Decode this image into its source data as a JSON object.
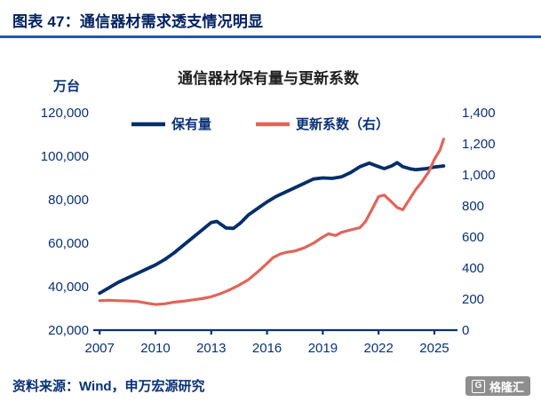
{
  "header": {
    "title": "图表 47：通信器材需求透支情况明显"
  },
  "colors": {
    "navy_text": "#0A3176",
    "divider_blue": "#1F57AE",
    "holdings_line": "#002D6A",
    "renewal_line": "#E0655B",
    "logo_gray": "#8E8E8E"
  },
  "chart_data": {
    "type": "line",
    "title": "通信器材保有量与更新系数",
    "legend_position": "top",
    "grid": false,
    "x_axis": {
      "min": 2006.8,
      "max": 2026.1,
      "ticks": [
        2007,
        2010,
        2013,
        2016,
        2019,
        2022,
        2025
      ]
    },
    "left_axis": {
      "label": "万台",
      "min": 20000,
      "max": 120000,
      "ticks": [
        20000,
        40000,
        60000,
        80000,
        100000,
        120000
      ]
    },
    "right_axis": {
      "min": 0,
      "max": 1400,
      "ticks": [
        0,
        200,
        400,
        600,
        800,
        1000,
        1200,
        1400
      ]
    },
    "series": [
      {
        "id": "holdings",
        "name": "保有量",
        "axis": "left",
        "color": "#002D6A",
        "x": [
          2007,
          2007.5,
          2008,
          2008.5,
          2009,
          2009.5,
          2010,
          2010.5,
          2011,
          2011.5,
          2012,
          2012.5,
          2013,
          2013.3,
          2013.8,
          2014.2,
          2014.6,
          2015,
          2015.5,
          2016,
          2016.5,
          2017,
          2017.5,
          2018,
          2018.5,
          2019,
          2019.5,
          2020,
          2020.5,
          2021,
          2021.5,
          2022,
          2022.3,
          2022.7,
          2023,
          2023.3,
          2023.7,
          2024,
          2024.5,
          2025,
          2025.5
        ],
        "y": [
          37000,
          39500,
          42000,
          44000,
          46000,
          48000,
          50000,
          52500,
          55500,
          59000,
          62500,
          66000,
          69500,
          70000,
          67000,
          66800,
          69500,
          73000,
          76000,
          79000,
          81500,
          83500,
          85500,
          87500,
          89500,
          90000,
          89800,
          90500,
          92500,
          95200,
          96800,
          95200,
          94300,
          95500,
          97000,
          95200,
          94200,
          93800,
          94200,
          95000,
          95500
        ]
      },
      {
        "id": "renewal-coefficient",
        "name": "更新系数（右）",
        "axis": "right",
        "color": "#E0655B",
        "x": [
          2007,
          2007.5,
          2008,
          2008.5,
          2009,
          2009.5,
          2010,
          2010.5,
          2011,
          2011.5,
          2012,
          2012.5,
          2013,
          2013.5,
          2014,
          2014.5,
          2015,
          2015.5,
          2016,
          2016.3,
          2016.7,
          2017,
          2017.5,
          2018,
          2018.5,
          2019,
          2019.3,
          2019.7,
          2020,
          2020.5,
          2021,
          2021.3,
          2021.7,
          2022,
          2022.3,
          2022.7,
          2023,
          2023.3,
          2023.7,
          2024,
          2024.3,
          2024.7,
          2025,
          2025.3,
          2025.5
        ],
        "y": [
          190,
          192,
          190,
          188,
          185,
          175,
          165,
          170,
          180,
          186,
          195,
          203,
          215,
          235,
          260,
          290,
          325,
          375,
          430,
          465,
          490,
          500,
          510,
          530,
          560,
          600,
          620,
          610,
          630,
          645,
          660,
          700,
          790,
          860,
          870,
          825,
          790,
          775,
          850,
          905,
          950,
          1020,
          1100,
          1160,
          1230
        ]
      }
    ]
  },
  "footer": {
    "source": "资料来源：Wind，申万宏源研究",
    "logo_icon": "G",
    "logo_text": "格隆汇"
  }
}
